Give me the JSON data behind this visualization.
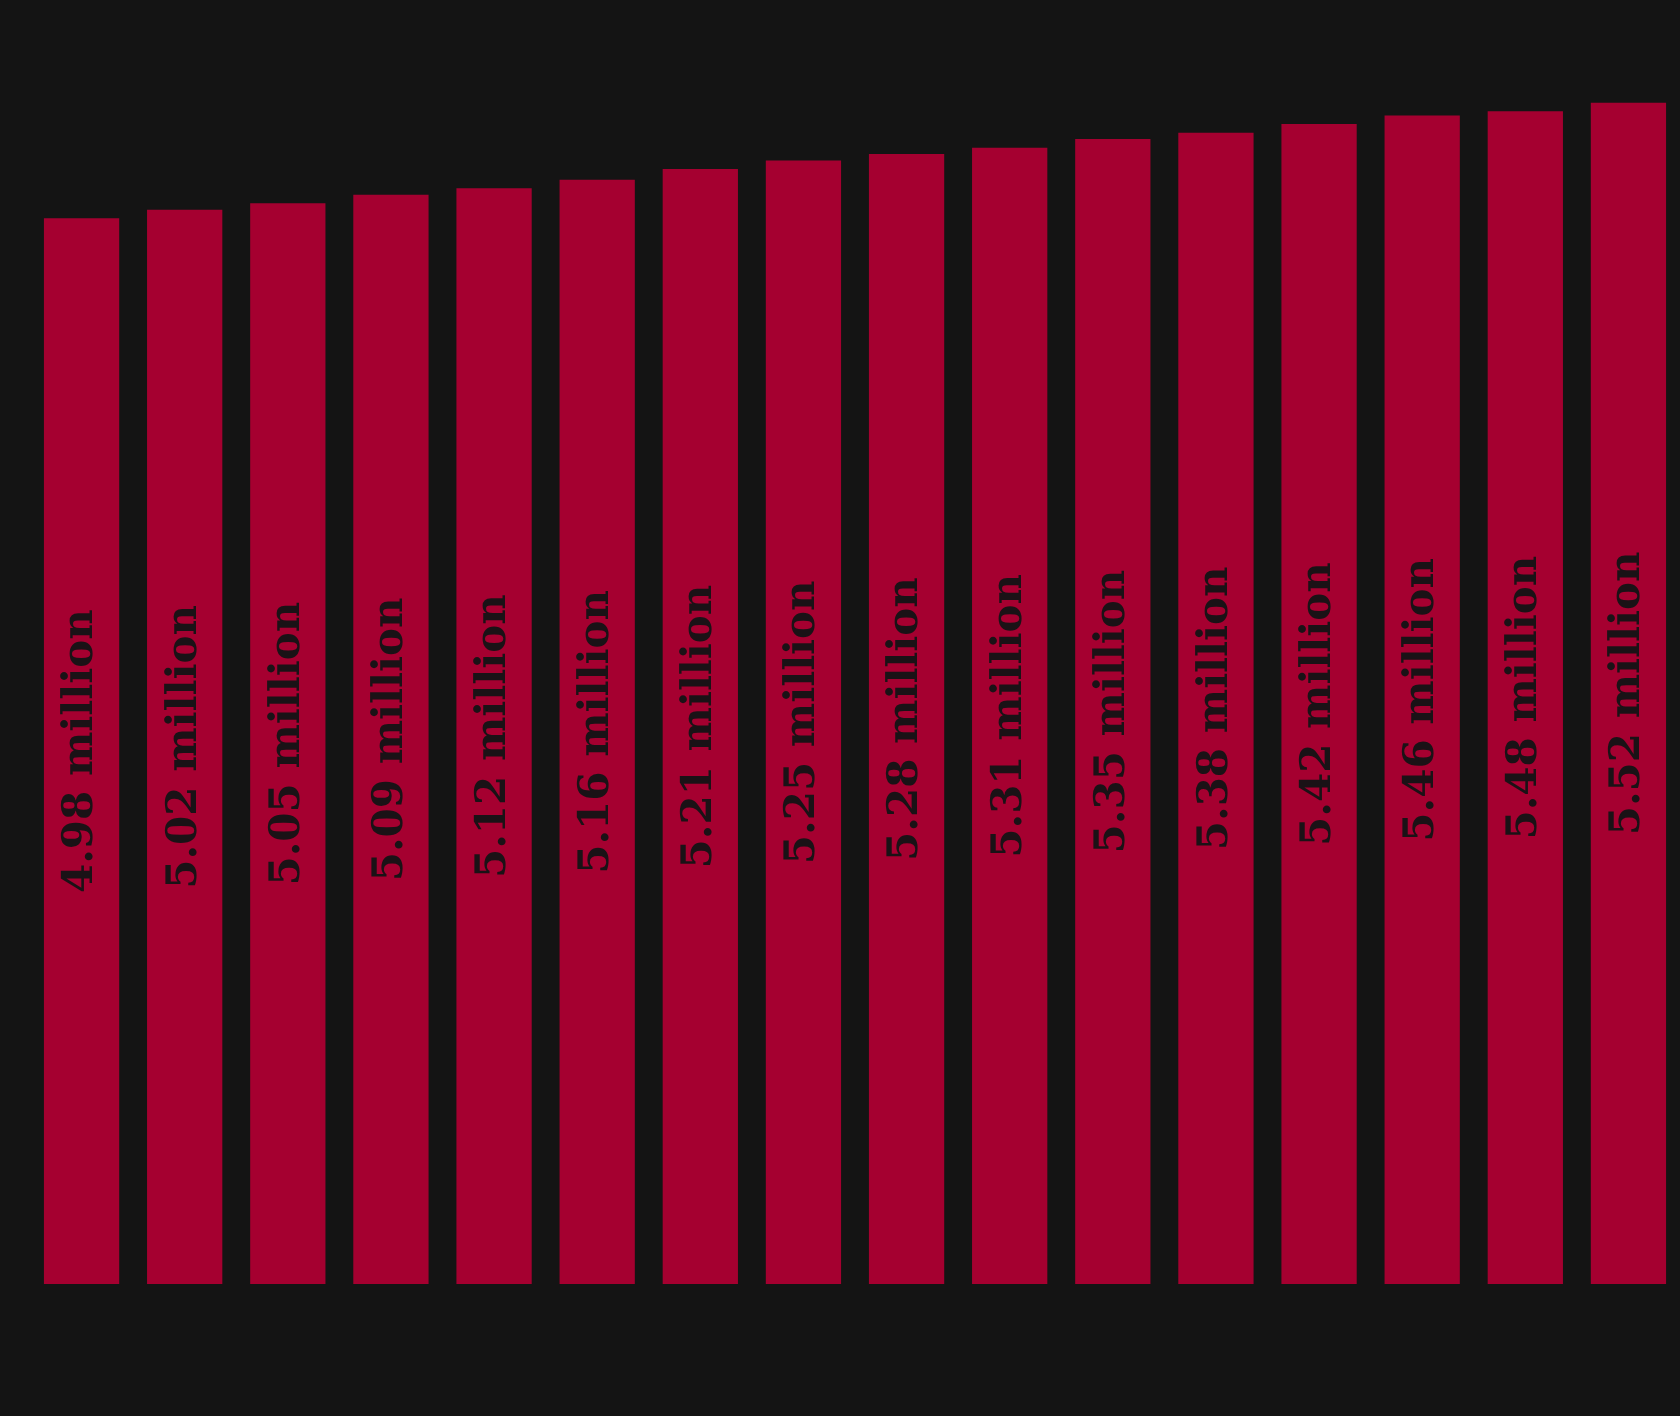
{
  "chart_data": {
    "type": "bar",
    "categories": [
      null,
      null,
      null,
      null,
      null,
      null,
      null,
      null,
      null,
      null,
      null,
      null,
      null,
      null,
      null,
      null
    ],
    "values": [
      4.98,
      5.02,
      5.05,
      5.09,
      5.12,
      5.16,
      5.21,
      5.25,
      5.28,
      5.31,
      5.35,
      5.38,
      5.42,
      5.46,
      5.48,
      5.52
    ],
    "value_labels": [
      "4.98 million",
      "5.02 million",
      "5.05 million",
      "5.09 million",
      "5.12 million",
      "5.16 million",
      "5.21 million",
      "5.25 million",
      "5.28 million",
      "5.31 million",
      "5.35 million",
      "5.38 million",
      "5.42 million",
      "5.46 million",
      "5.48 million",
      "5.52 million"
    ],
    "color": "#a50030",
    "tick_labels": false
  }
}
